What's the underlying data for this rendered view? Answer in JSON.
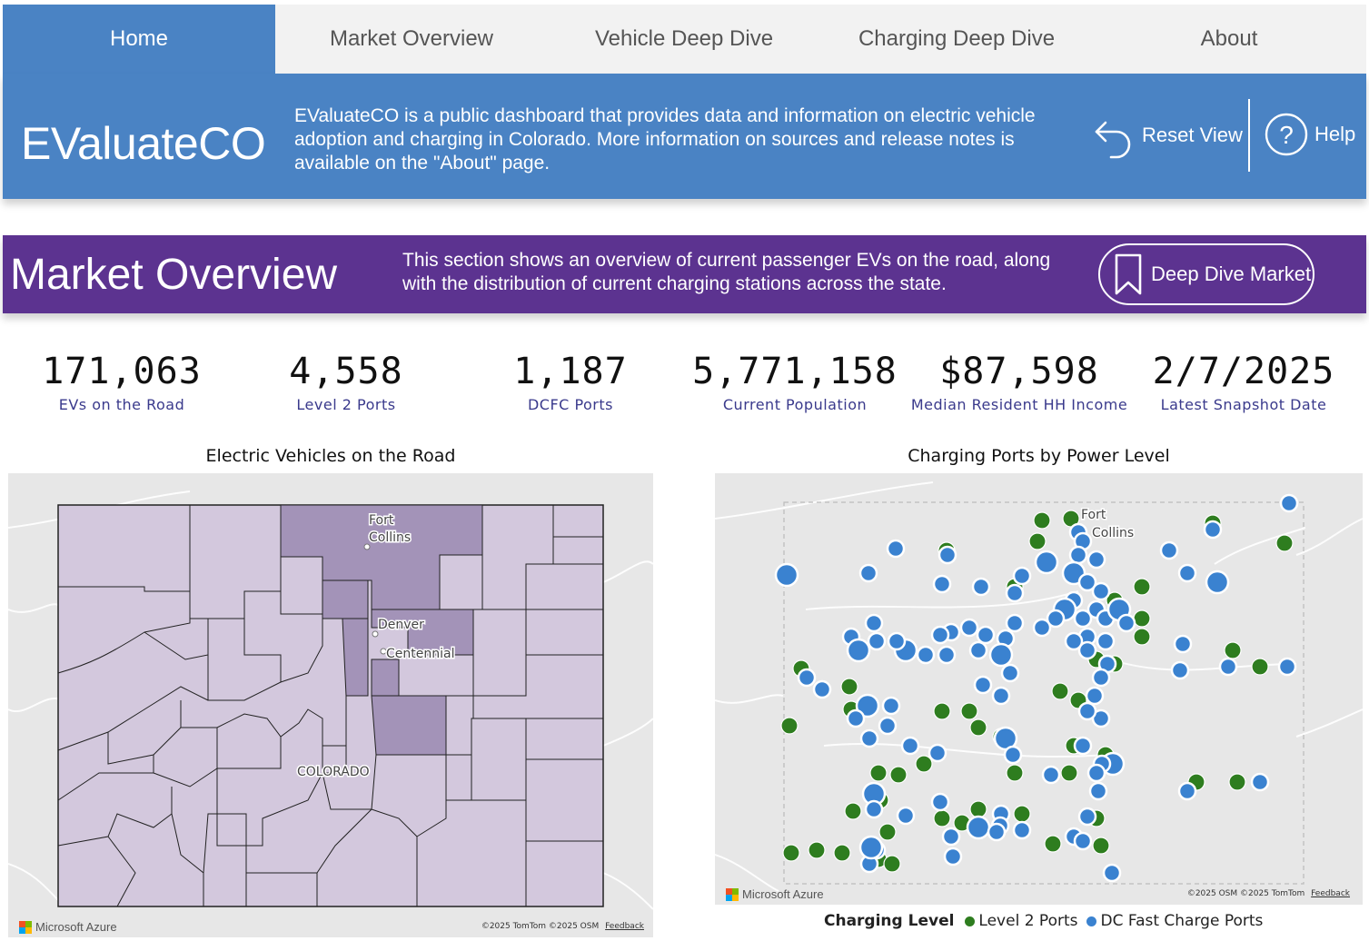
{
  "nav": {
    "tabs": [
      {
        "label": "Home",
        "active": true
      },
      {
        "label": "Market Overview",
        "active": false
      },
      {
        "label": "Vehicle Deep Dive",
        "active": false
      },
      {
        "label": "Charging Deep Dive",
        "active": false
      },
      {
        "label": "About",
        "active": false
      }
    ]
  },
  "header": {
    "brand": "EValuateCO",
    "description": "EValuateCO is a public dashboard that provides data and information on electric vehicle adoption and charging in Colorado. More information on sources and release notes is available on the \"About\" page.",
    "reset_label": "Reset View",
    "help_label": "Help",
    "color": "#4a83c4"
  },
  "section": {
    "title": "Market Overview",
    "description": "This section shows an overview of current passenger EVs on the road, along with the distribution of current charging stations across the state.",
    "deep_dive_label": "Deep Dive Market",
    "color": "#5c3390"
  },
  "kpis": [
    {
      "value": "171,063",
      "label": "EVs on the Road"
    },
    {
      "value": "4,558",
      "label": "Level 2 Ports"
    },
    {
      "value": "1,187",
      "label": "DCFC Ports"
    },
    {
      "value": "5,771,158",
      "label": "Current Population"
    },
    {
      "value": "$87,598",
      "label": "Median Resident HH Income"
    },
    {
      "value": "2/7/2025",
      "label": "Latest Snapshot Date"
    }
  ],
  "ev_map": {
    "title": "Electric Vehicles on the Road",
    "labels": {
      "fort": "Fort",
      "collins": "Collins",
      "denver": "Denver",
      "centennial": "Centennial",
      "state": "COLORADO"
    },
    "logo": "Microsoft Azure",
    "attribution": "©2025 TomTom  ©2025 OSM",
    "feedback": "Feedback"
  },
  "charging_map": {
    "title": "Charging Ports by Power Level",
    "labels": {
      "fort": "Fort",
      "collins": "Collins"
    },
    "logo": "Microsoft Azure",
    "attribution": "©2025 OSM  ©2025 TomTom",
    "feedback": "Feedback",
    "legend_title": "Charging Level",
    "legend": [
      {
        "label": "Level 2 Ports",
        "color": "#2e7d1f"
      },
      {
        "label": "DC Fast Charge Ports",
        "color": "#3a82d0"
      }
    ]
  }
}
